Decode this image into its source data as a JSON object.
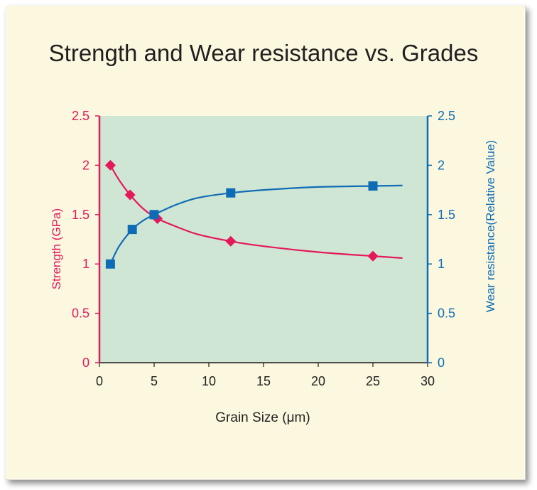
{
  "colors": {
    "background": "#fbf8df",
    "plot_area": "#cfe6d4",
    "strength": "#e5185c",
    "wear": "#0e6cb6",
    "text": "#231f20"
  },
  "chart_data": {
    "type": "line",
    "title": "Strength and Wear resistance vs. Grades",
    "xlabel": "Grain Size (μm)",
    "ylabel_left": "Strength (GPa)",
    "ylabel_right": "Wear resistance(Relative Value)",
    "xlim": [
      0,
      30
    ],
    "ylim_left": [
      0,
      2.5
    ],
    "ylim_right": [
      0,
      2.5
    ],
    "x_ticks": [
      "0",
      "5",
      "10",
      "15",
      "20",
      "25",
      "30"
    ],
    "y_ticks_left": [
      "0",
      "0.5",
      "1",
      "1.5",
      "2",
      "2.5"
    ],
    "y_ticks_right": [
      "0",
      "0.5",
      "1",
      "1.5",
      "2",
      "2.5"
    ],
    "grid": false,
    "series": [
      {
        "axis": "left",
        "marker": "diamond",
        "points": [
          [
            1,
            2.0
          ],
          [
            2.8,
            1.7
          ],
          [
            5.3,
            1.46
          ],
          [
            12,
            1.23
          ],
          [
            25,
            1.08
          ]
        ],
        "curve": [
          [
            1,
            2.0
          ],
          [
            1.8,
            1.85
          ],
          [
            2.8,
            1.7
          ],
          [
            4,
            1.56
          ],
          [
            5.3,
            1.46
          ],
          [
            7,
            1.38
          ],
          [
            9,
            1.3
          ],
          [
            12,
            1.23
          ],
          [
            15,
            1.18
          ],
          [
            20,
            1.12
          ],
          [
            25,
            1.08
          ],
          [
            27.7,
            1.06
          ]
        ]
      },
      {
        "axis": "right",
        "marker": "square",
        "points": [
          [
            1,
            1.0
          ],
          [
            3,
            1.35
          ],
          [
            5,
            1.5
          ],
          [
            12,
            1.72
          ],
          [
            25,
            1.79
          ]
        ],
        "curve": [
          [
            1,
            1.0
          ],
          [
            1.8,
            1.18
          ],
          [
            3,
            1.35
          ],
          [
            4,
            1.44
          ],
          [
            5,
            1.5
          ],
          [
            7,
            1.6
          ],
          [
            9,
            1.67
          ],
          [
            12,
            1.72
          ],
          [
            15,
            1.75
          ],
          [
            20,
            1.78
          ],
          [
            25,
            1.79
          ],
          [
            27.7,
            1.795
          ]
        ]
      }
    ]
  }
}
